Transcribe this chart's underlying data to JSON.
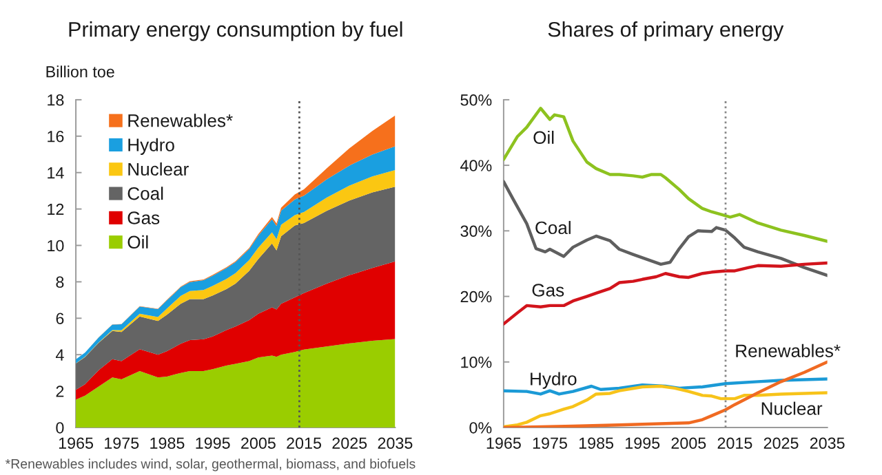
{
  "chart_data": [
    {
      "type": "area",
      "stacked": true,
      "title": "Primary energy consumption by fuel",
      "ylabel": "Billion toe",
      "legend": "top left",
      "x": [
        1965,
        1967,
        1970,
        1973,
        1975,
        1979,
        1983,
        1985,
        1988,
        1990,
        1993,
        1995,
        1998,
        2000,
        2003,
        2005,
        2008,
        2009,
        2010,
        2013,
        2015,
        2020,
        2025,
        2030,
        2035
      ],
      "xlim": [
        1965,
        2035
      ],
      "xticks": [
        1965,
        1975,
        1985,
        1995,
        2005,
        2015,
        2025,
        2035
      ],
      "ylim": [
        0,
        18
      ],
      "yticks": [
        0,
        2,
        4,
        6,
        8,
        10,
        12,
        14,
        16,
        18
      ],
      "ref_lines": [
        {
          "axis": "x",
          "value": 2014,
          "line_style": "dotted",
          "color": "#555555"
        }
      ],
      "series": [
        {
          "name": "Oil",
          "color": "#9acd00",
          "values": [
            1.53,
            1.75,
            2.25,
            2.75,
            2.65,
            3.1,
            2.75,
            2.8,
            3.0,
            3.1,
            3.1,
            3.2,
            3.4,
            3.5,
            3.65,
            3.85,
            3.95,
            3.88,
            4.0,
            4.15,
            4.28,
            4.45,
            4.62,
            4.76,
            4.86
          ]
        },
        {
          "name": "Gas",
          "color": "#e00000",
          "values": [
            0.54,
            0.62,
            0.9,
            1.0,
            1.0,
            1.2,
            1.25,
            1.4,
            1.6,
            1.7,
            1.75,
            1.8,
            1.95,
            2.05,
            2.25,
            2.4,
            2.65,
            2.6,
            2.8,
            3.0,
            3.1,
            3.45,
            3.75,
            4.0,
            4.26
          ]
        },
        {
          "name": "Coal",
          "color": "#646464",
          "values": [
            1.45,
            1.5,
            1.5,
            1.55,
            1.6,
            1.8,
            1.85,
            2.0,
            2.2,
            2.25,
            2.2,
            2.25,
            2.25,
            2.35,
            2.7,
            3.0,
            3.5,
            3.25,
            3.7,
            3.95,
            3.85,
            4.0,
            4.1,
            4.15,
            4.1
          ]
        },
        {
          "name": "Nuclear",
          "color": "#fbc712",
          "values": [
            0.01,
            0.01,
            0.02,
            0.05,
            0.09,
            0.15,
            0.22,
            0.34,
            0.43,
            0.45,
            0.5,
            0.53,
            0.56,
            0.58,
            0.6,
            0.63,
            0.62,
            0.61,
            0.63,
            0.56,
            0.6,
            0.73,
            0.82,
            0.88,
            0.92
          ]
        },
        {
          "name": "Hydro",
          "color": "#1a9fe0",
          "values": [
            0.21,
            0.23,
            0.27,
            0.3,
            0.33,
            0.39,
            0.43,
            0.45,
            0.48,
            0.49,
            0.54,
            0.56,
            0.59,
            0.6,
            0.6,
            0.66,
            0.72,
            0.73,
            0.78,
            0.86,
            0.9,
            1.0,
            1.1,
            1.2,
            1.3
          ]
        },
        {
          "name": "Renewables*",
          "color": "#f6701c",
          "values": [
            0.0,
            0.0,
            0.01,
            0.01,
            0.01,
            0.02,
            0.02,
            0.03,
            0.03,
            0.04,
            0.04,
            0.04,
            0.05,
            0.05,
            0.06,
            0.08,
            0.12,
            0.13,
            0.16,
            0.28,
            0.35,
            0.6,
            0.95,
            1.3,
            1.7
          ]
        }
      ],
      "annotations": [
        "*Renewables includes wind, solar, geothermal, biomass, and biofuels"
      ]
    },
    {
      "type": "line",
      "title": "Shares of primary energy",
      "line_style": "solid",
      "xlim": [
        1965,
        2035
      ],
      "xticks": [
        1965,
        1975,
        1985,
        1995,
        2005,
        2015,
        2025,
        2035
      ],
      "ylim": [
        0,
        50
      ],
      "yticks": [
        {
          "value": 0,
          "label": "0%"
        },
        {
          "value": 10,
          "label": "10%"
        },
        {
          "value": 20,
          "label": "20%"
        },
        {
          "value": 30,
          "label": "30%"
        },
        {
          "value": 40,
          "label": "40%"
        },
        {
          "value": 50,
          "label": "50%"
        }
      ],
      "ref_lines": [
        {
          "axis": "x",
          "value": 2013,
          "line_style": "dotted",
          "color": "#888888"
        }
      ],
      "series": [
        {
          "name": "Oil",
          "color": "#8dc21f",
          "x": [
            1965,
            1968,
            1970,
            1973,
            1975,
            1976,
            1978,
            1980,
            1983,
            1985,
            1988,
            1990,
            1993,
            1995,
            1997,
            1999,
            2000,
            2003,
            2005,
            2008,
            2010,
            2013,
            2014,
            2016,
            2020,
            2025,
            2030,
            2035
          ],
          "values": [
            40.9,
            44.4,
            45.8,
            48.7,
            47.0,
            47.7,
            47.4,
            43.7,
            40.5,
            39.5,
            38.6,
            38.6,
            38.4,
            38.2,
            38.6,
            38.6,
            38.1,
            36.3,
            34.9,
            33.4,
            32.9,
            32.3,
            32.1,
            32.5,
            31.2,
            30.1,
            29.3,
            28.4
          ]
        },
        {
          "name": "Coal",
          "color": "#5f5f5f",
          "x": [
            1965,
            1967,
            1970,
            1972,
            1974,
            1975,
            1978,
            1980,
            1983,
            1985,
            1988,
            1990,
            1993,
            1995,
            1999,
            2001,
            2003,
            2005,
            2007,
            2010,
            2011,
            2013,
            2015,
            2017,
            2020,
            2025,
            2030,
            2035
          ],
          "values": [
            37.5,
            34.9,
            31.1,
            27.3,
            26.8,
            27.2,
            26.1,
            27.5,
            28.6,
            29.2,
            28.5,
            27.2,
            26.4,
            25.9,
            24.9,
            25.2,
            27.3,
            29.1,
            30.0,
            29.9,
            30.5,
            30.1,
            28.9,
            27.5,
            26.8,
            25.8,
            24.4,
            23.2
          ]
        },
        {
          "name": "Gas",
          "color": "#d2141c",
          "x": [
            1965,
            1968,
            1970,
            1973,
            1975,
            1978,
            1980,
            1983,
            1985,
            1988,
            1990,
            1993,
            1995,
            1998,
            2000,
            2003,
            2005,
            2008,
            2010,
            2013,
            2015,
            2018,
            2020,
            2025,
            2030,
            2035
          ],
          "values": [
            15.8,
            17.5,
            18.6,
            18.4,
            18.6,
            18.6,
            19.3,
            20.0,
            20.5,
            21.2,
            22.1,
            22.3,
            22.6,
            23.0,
            23.5,
            23.0,
            22.9,
            23.5,
            23.7,
            23.9,
            23.9,
            24.4,
            24.7,
            24.6,
            24.9,
            25.1
          ]
        },
        {
          "name": "Hydro",
          "color": "#1b9ad6",
          "x": [
            1965,
            1970,
            1973,
            1975,
            1977,
            1980,
            1984,
            1986,
            1990,
            1995,
            2000,
            2003,
            2008,
            2013,
            2020,
            2025,
            2035
          ],
          "values": [
            5.6,
            5.5,
            5.1,
            5.6,
            5.1,
            5.5,
            6.3,
            5.8,
            6.0,
            6.5,
            6.3,
            6.0,
            6.2,
            6.7,
            7.0,
            7.2,
            7.4
          ]
        },
        {
          "name": "Nuclear",
          "color": "#f7c31a",
          "x": [
            1965,
            1968,
            1970,
            1973,
            1975,
            1978,
            1980,
            1983,
            1985,
            1988,
            1990,
            1995,
            1999,
            2002,
            2005,
            2008,
            2010,
            2012,
            2015,
            2017,
            2020,
            2025,
            2035
          ],
          "values": [
            0.1,
            0.4,
            0.8,
            1.8,
            2.1,
            2.8,
            3.2,
            4.2,
            5.1,
            5.2,
            5.6,
            6.2,
            6.3,
            6.0,
            5.5,
            4.9,
            4.8,
            4.4,
            4.4,
            4.9,
            4.9,
            5.1,
            5.3
          ]
        },
        {
          "name": "Renewables*",
          "color": "#f06a22",
          "x": [
            1965,
            1980,
            1990,
            2000,
            2005,
            2008,
            2010,
            2013,
            2015,
            2020,
            2025,
            2030,
            2035
          ],
          "values": [
            0.0,
            0.2,
            0.4,
            0.6,
            0.7,
            1.2,
            1.8,
            2.7,
            3.5,
            5.3,
            7.0,
            8.4,
            10.0
          ]
        }
      ]
    }
  ]
}
